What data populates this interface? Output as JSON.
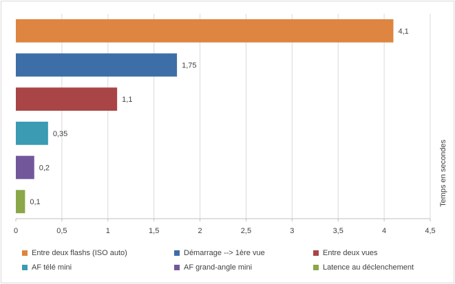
{
  "chart_data": {
    "type": "bar",
    "orientation": "horizontal",
    "categories": [
      "Entre deux flashs (ISO auto)",
      "Démarrage --> 1ère vue",
      "Entre deux vues",
      "AF télé mini",
      "AF grand-angle mini",
      "Latence au déclenchement"
    ],
    "values": [
      4.1,
      1.75,
      1.1,
      0.35,
      0.2,
      0.1
    ],
    "data_labels": [
      "4,1",
      "1,75",
      "1,1",
      "0,35",
      "0,2",
      "0,1"
    ],
    "colors": [
      "#dd8541",
      "#3e6ea7",
      "#a94546",
      "#3a9bb3",
      "#73579b",
      "#8ba749"
    ],
    "axis_label": "Temps en secondes",
    "xlim": [
      0,
      4.5
    ],
    "xticks": [
      0,
      0.5,
      1,
      1.5,
      2,
      2.5,
      3,
      3.5,
      4,
      4.5
    ],
    "xtick_labels": [
      "0",
      "0,5",
      "1",
      "1,5",
      "2",
      "2,5",
      "3",
      "3,5",
      "4",
      "4,5"
    ],
    "grid": true,
    "legend_position": "bottom"
  }
}
